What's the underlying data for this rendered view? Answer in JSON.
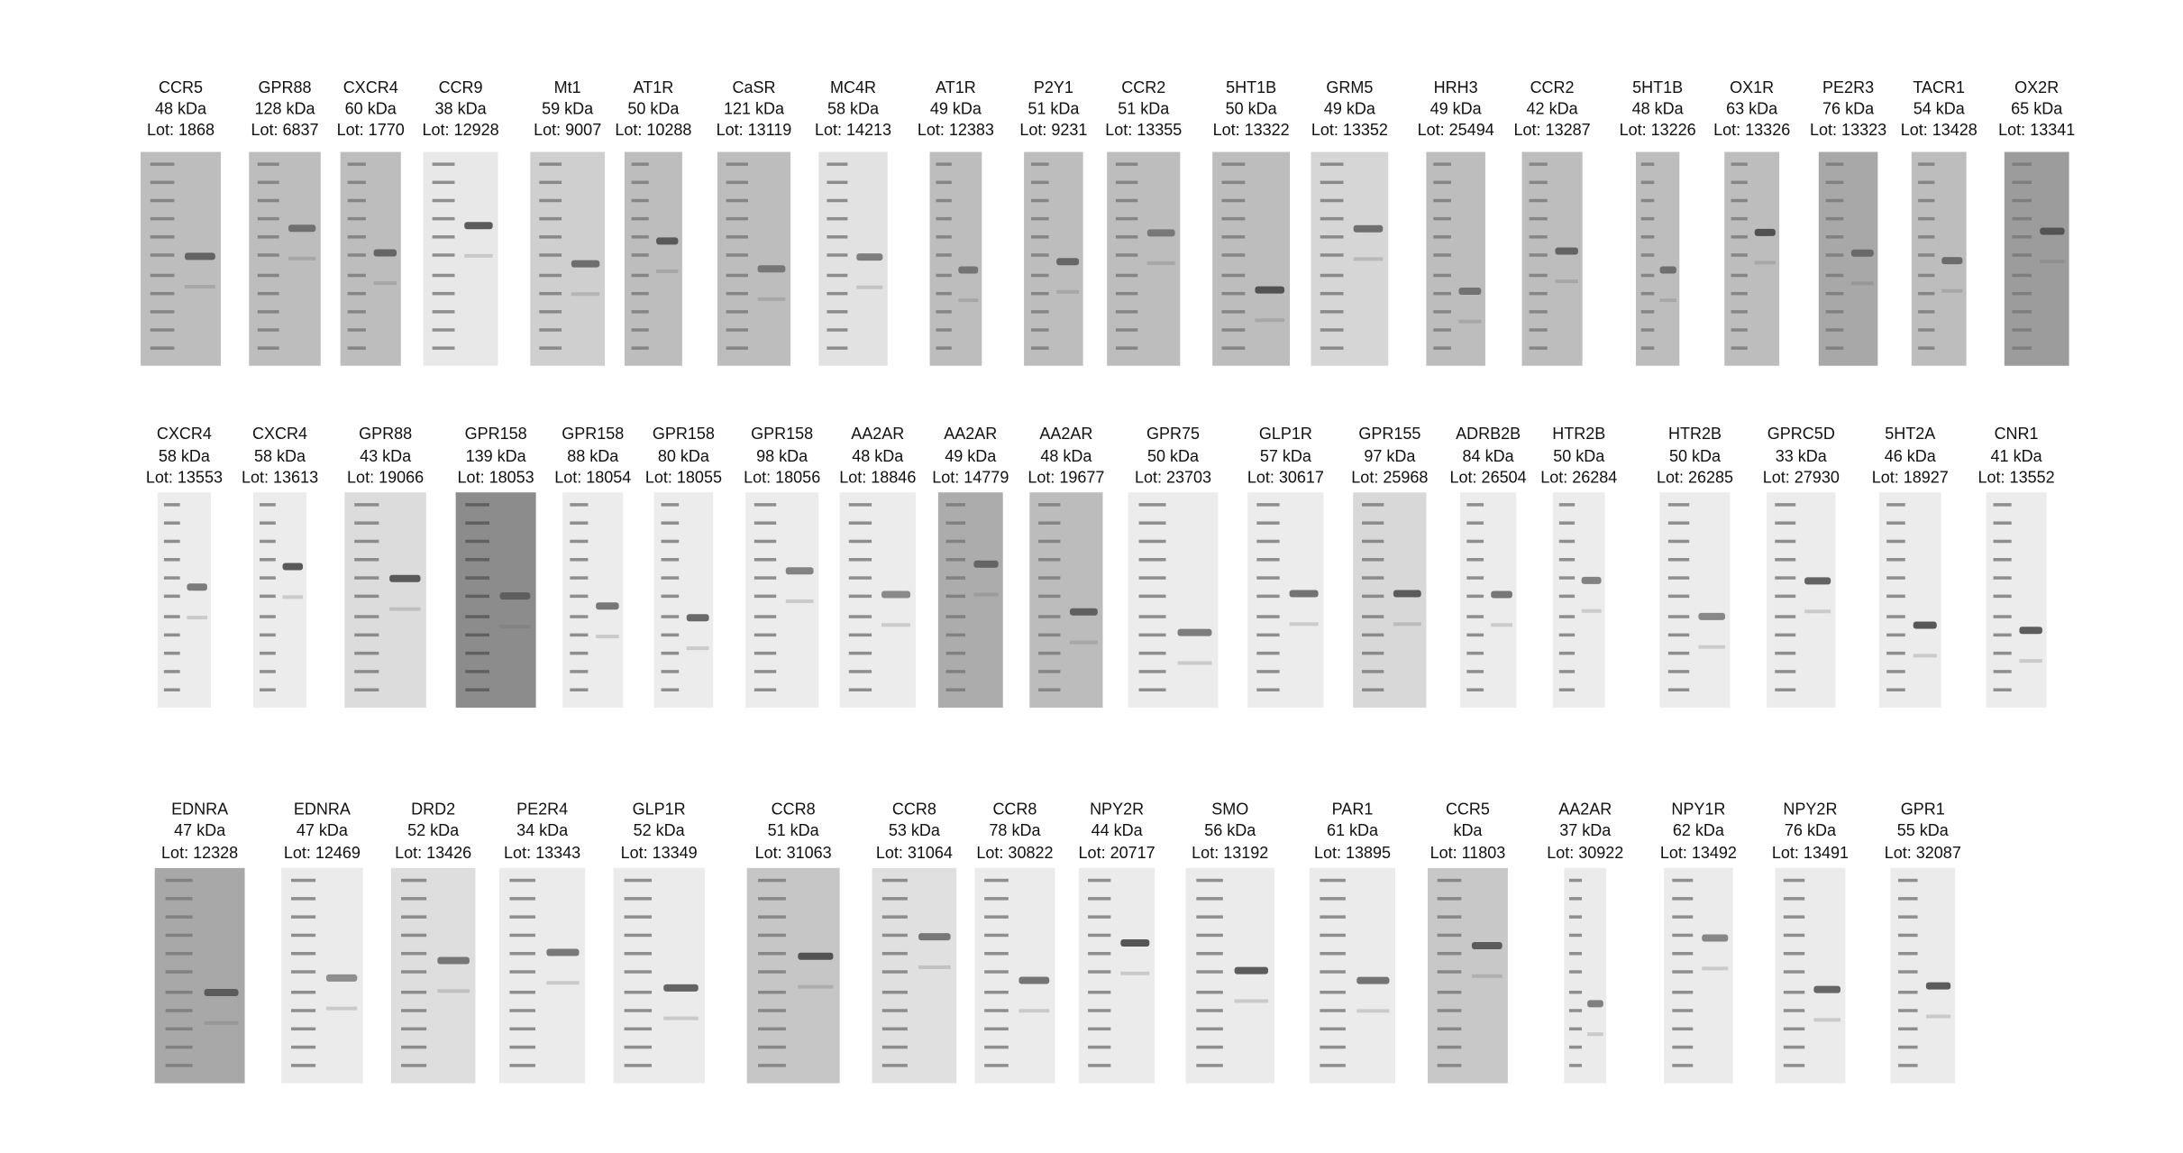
{
  "rows": [
    [
      {
        "name": "CCR5",
        "mass": "48 kDa",
        "lot": "Lot: 1868"
      },
      {
        "name": "GPR88",
        "mass": "128 kDa",
        "lot": "Lot: 6837"
      },
      {
        "name": "CXCR4",
        "mass": "60 kDa",
        "lot": "Lot: 1770"
      },
      {
        "name": "CCR9",
        "mass": "38 kDa",
        "lot": "Lot: 12928"
      },
      {
        "name": "Mt1",
        "mass": "59 kDa",
        "lot": "Lot: 9007"
      },
      {
        "name": "AT1R",
        "mass": "50 kDa",
        "lot": "Lot: 10288"
      },
      {
        "name": "CaSR",
        "mass": "121 kDa",
        "lot": "Lot: 13119"
      },
      {
        "name": "MC4R",
        "mass": "58 kDa",
        "lot": "Lot: 14213"
      },
      {
        "name": "AT1R",
        "mass": "49 kDa",
        "lot": "Lot: 12383"
      },
      {
        "name": "P2Y1",
        "mass": "51 kDa",
        "lot": "Lot: 9231"
      },
      {
        "name": "CCR2",
        "mass": "51 kDa",
        "lot": "Lot: 13355"
      },
      {
        "name": "5HT1B",
        "mass": "50 kDa",
        "lot": "Lot: 13322"
      },
      {
        "name": "GRM5",
        "mass": "49 kDa",
        "lot": "Lot: 13352"
      },
      {
        "name": "HRH3",
        "mass": "49 kDa",
        "lot": "Lot: 25494"
      },
      {
        "name": "CCR2",
        "mass": "42 kDa",
        "lot": "Lot: 13287"
      },
      {
        "name": "5HT1B",
        "mass": "48 kDa",
        "lot": "Lot: 13226"
      },
      {
        "name": "OX1R",
        "mass": "63 kDa",
        "lot": "Lot: 13326"
      },
      {
        "name": "PE2R3",
        "mass": "76 kDa",
        "lot": "Lot: 13323"
      },
      {
        "name": "TACR1",
        "mass": "54 kDa",
        "lot": "Lot: 13428"
      },
      {
        "name": "OX2R",
        "mass": "65 kDa",
        "lot": "Lot: 13341"
      }
    ],
    [
      {
        "name": "CXCR4",
        "mass": "58 kDa",
        "lot": "Lot: 13553"
      },
      {
        "name": "CXCR4",
        "mass": "58 kDa",
        "lot": "Lot: 13613"
      },
      {
        "name": "GPR88",
        "mass": "43 kDa",
        "lot": "Lot: 19066"
      },
      {
        "name": "GPR158",
        "mass": "139 kDa",
        "lot": "Lot: 18053"
      },
      {
        "name": "GPR158",
        "mass": "88 kDa",
        "lot": "Lot: 18054"
      },
      {
        "name": "GPR158",
        "mass": "80 kDa",
        "lot": "Lot: 18055"
      },
      {
        "name": "GPR158",
        "mass": "98 kDa",
        "lot": "Lot: 18056"
      },
      {
        "name": "AA2AR",
        "mass": "48 kDa",
        "lot": "Lot: 18846"
      },
      {
        "name": "AA2AR",
        "mass": "49 kDa",
        "lot": "Lot: 14779"
      },
      {
        "name": "AA2AR",
        "mass": "48 kDa",
        "lot": "Lot: 19677"
      },
      {
        "name": "GPR75",
        "mass": "50 kDa",
        "lot": "Lot: 23703"
      },
      {
        "name": "GLP1R",
        "mass": "57 kDa",
        "lot": "Lot: 30617"
      },
      {
        "name": "GPR155",
        "mass": "97 kDa",
        "lot": "Lot: 25968"
      },
      {
        "name": "ADRB2B",
        "mass": "84 kDa",
        "lot": "Lot: 26504"
      },
      {
        "name": "HTR2B",
        "mass": "50 kDa",
        "lot": "Lot: 26284"
      },
      {
        "name": "HTR2B",
        "mass": "50 kDa",
        "lot": "Lot: 26285"
      },
      {
        "name": "GPRC5D",
        "mass": "33 kDa",
        "lot": "Lot: 27930"
      },
      {
        "name": "5HT2A",
        "mass": "46 kDa",
        "lot": "Lot: 18927"
      },
      {
        "name": "CNR1",
        "mass": "41 kDa",
        "lot": "Lot: 13552"
      }
    ],
    [
      {
        "name": "EDNRA",
        "mass": "47 kDa",
        "lot": "Lot: 12328"
      },
      {
        "name": "EDNRA",
        "mass": "47 kDa",
        "lot": "Lot: 12469"
      },
      {
        "name": "DRD2",
        "mass": "52 kDa",
        "lot": "Lot: 13426"
      },
      {
        "name": "PE2R4",
        "mass": "34 kDa",
        "lot": "Lot: 13343"
      },
      {
        "name": "GLP1R",
        "mass": "52 kDa",
        "lot": "Lot: 13349"
      },
      {
        "name": "CCR8",
        "mass": "51 kDa",
        "lot": "Lot: 31063"
      },
      {
        "name": "CCR8",
        "mass": "53 kDa",
        "lot": "Lot: 31064"
      },
      {
        "name": "CCR8",
        "mass": "78 kDa",
        "lot": "Lot: 30822"
      },
      {
        "name": "NPY2R",
        "mass": "44 kDa",
        "lot": "Lot: 20717"
      },
      {
        "name": "SMO",
        "mass": "56 kDa",
        "lot": "Lot: 13192"
      },
      {
        "name": "PAR1",
        "mass": "61 kDa",
        "lot": "Lot: 13895"
      },
      {
        "name": "CCR5",
        "mass": "kDa",
        "lot": "Lot: 11803"
      },
      {
        "name": "AA2AR",
        "mass": "37 kDa",
        "lot": "Lot: 30922"
      },
      {
        "name": "NPY1R",
        "mass": "62 kDa",
        "lot": "Lot: 13492"
      },
      {
        "name": "NPY2R",
        "mass": "76 kDa",
        "lot": "Lot: 13491"
      },
      {
        "name": "GPR1",
        "mass": "55 kDa",
        "lot": "Lot: 32087"
      }
    ]
  ]
}
